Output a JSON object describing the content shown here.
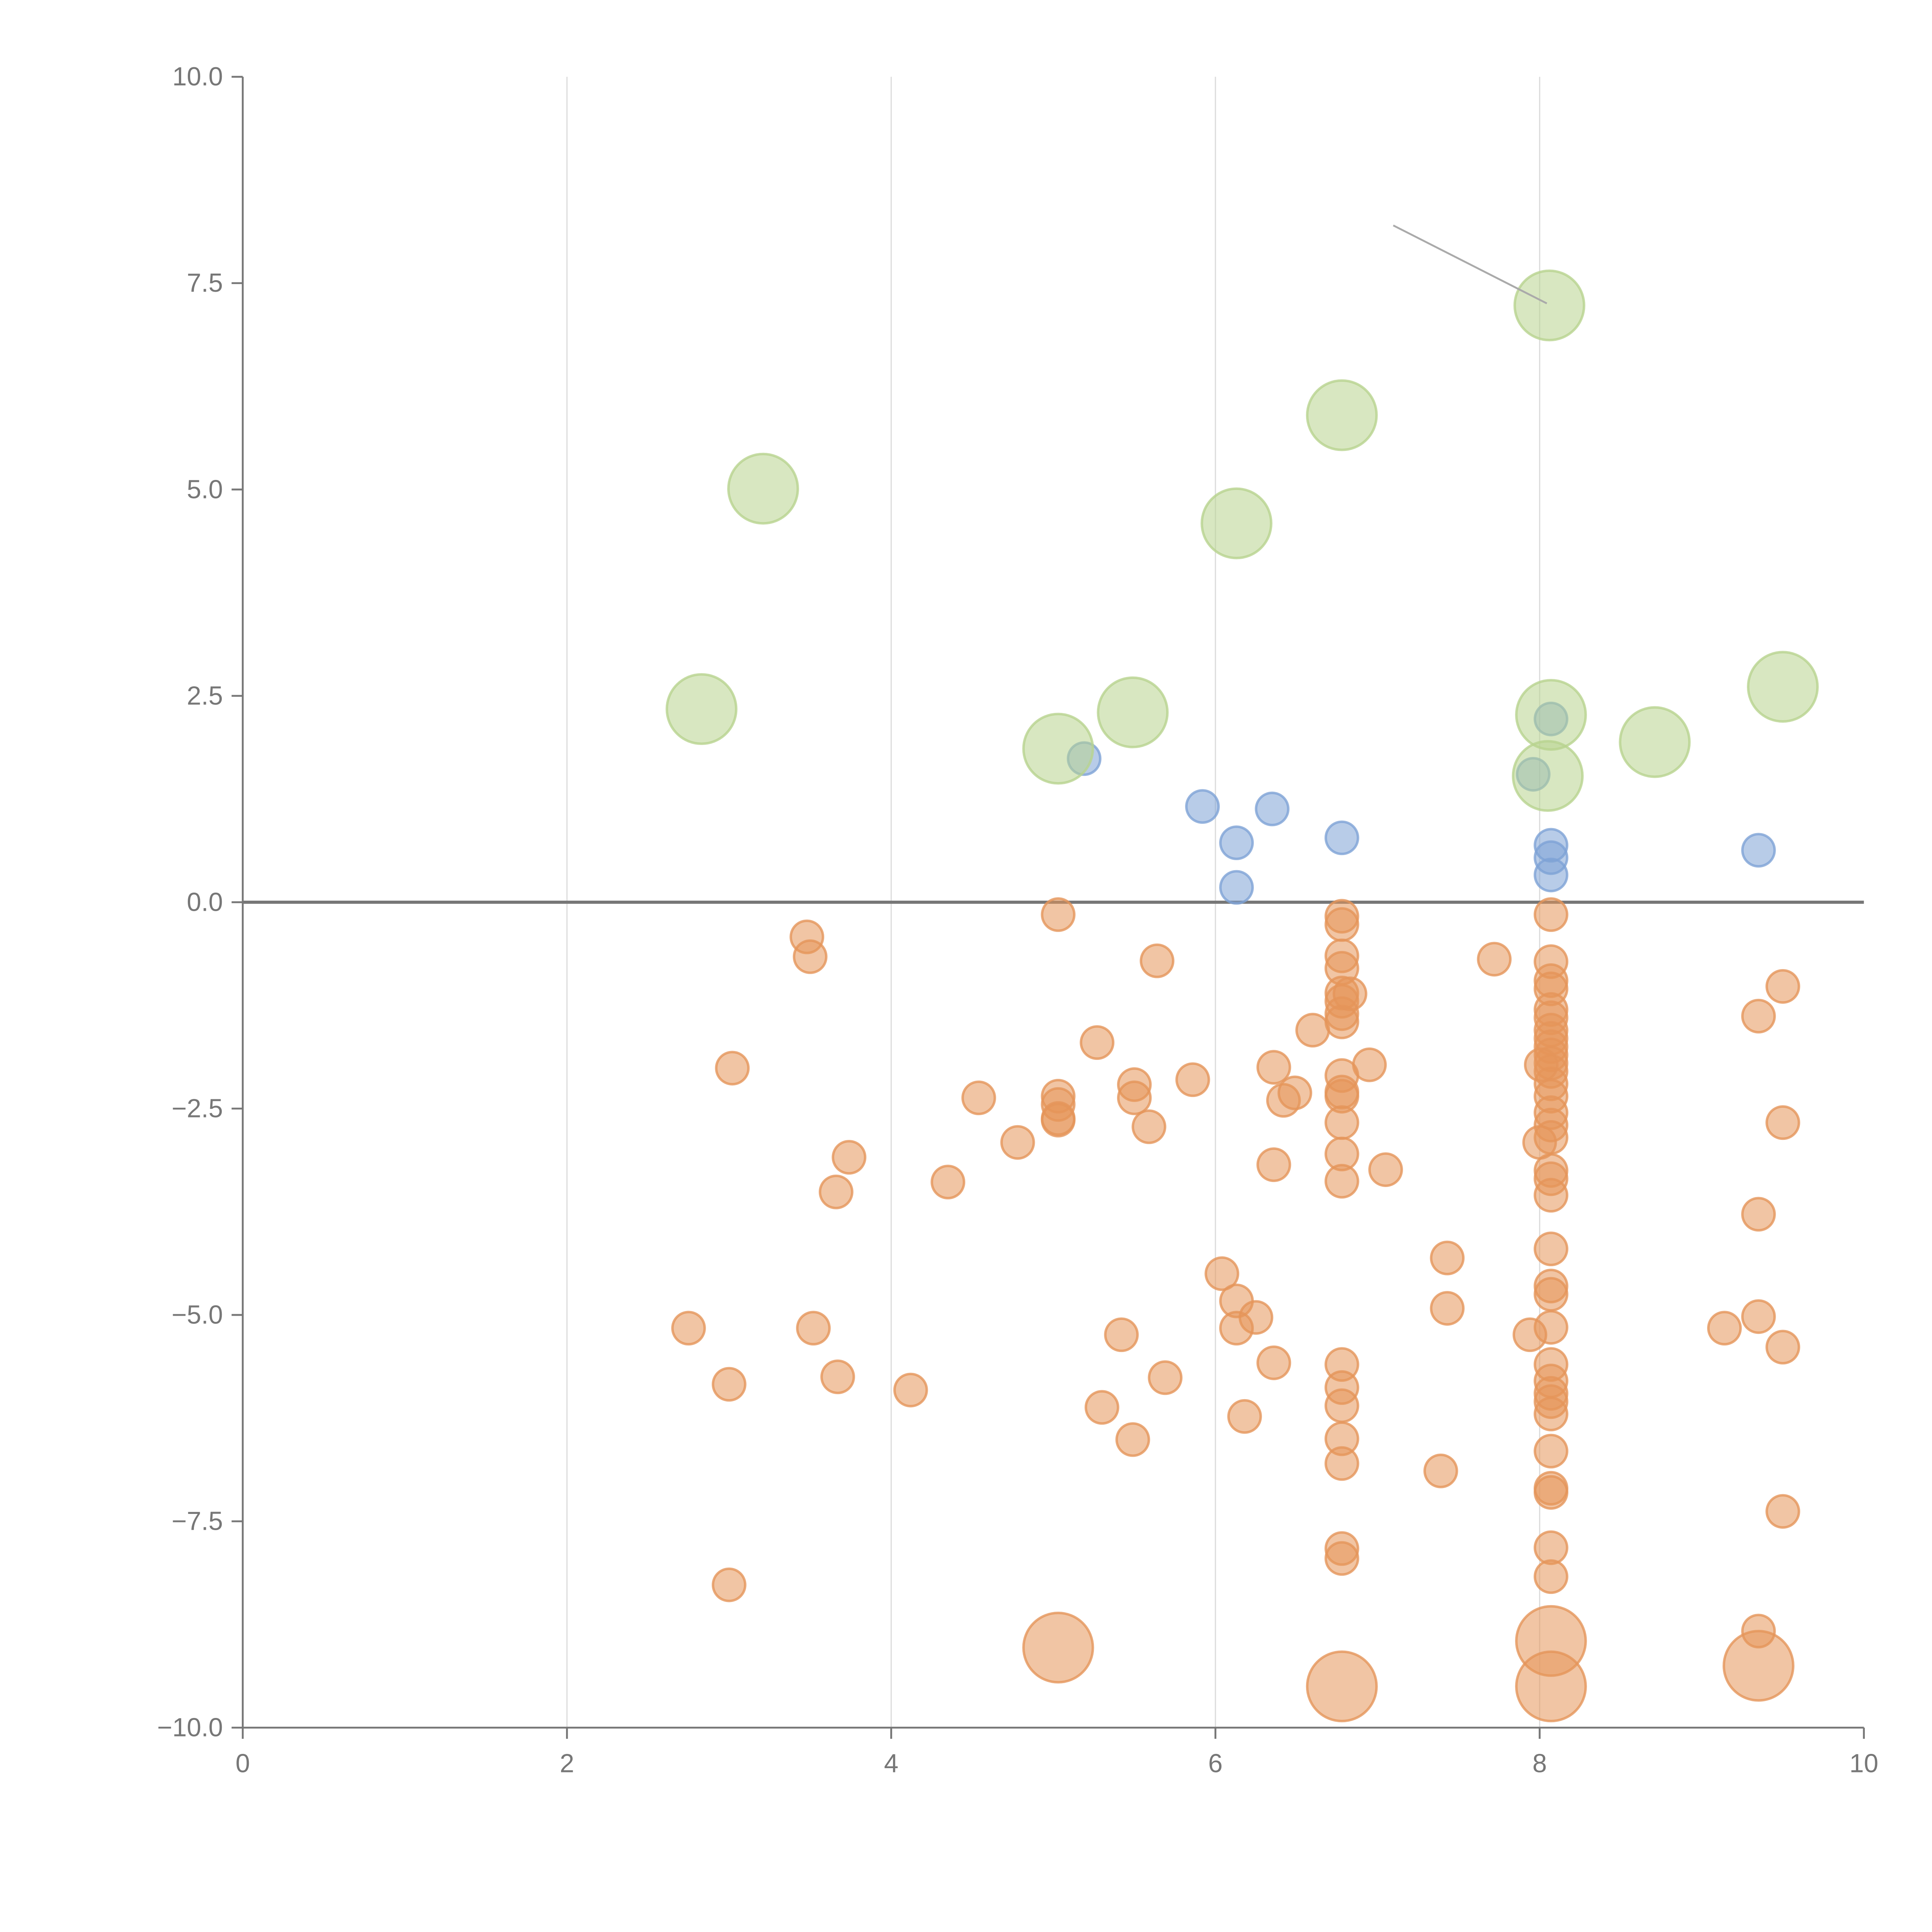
{
  "chart_data": {
    "type": "scatter",
    "title": "",
    "xlabel": "",
    "ylabel": "",
    "xlim": [
      0,
      10
    ],
    "ylim": [
      -10,
      10
    ],
    "xticks": [
      0,
      2,
      4,
      6,
      8,
      10
    ],
    "xtick_labels": [
      "0",
      "2",
      "4",
      "6",
      "8",
      "10"
    ],
    "yticks": [
      10,
      7.5,
      5,
      2.5,
      0,
      -2.5,
      -5,
      -7.5,
      -10
    ],
    "ytick_labels": [
      "10.0",
      "7.5",
      "5.0",
      "2.5",
      "0.0",
      "−2.5",
      "−5.0",
      "−7.5",
      "−10.0"
    ],
    "grid": "vertical",
    "reference_line_y": 0,
    "series": [
      {
        "name": "orange",
        "color": "#e5955a",
        "points": [
          [
            5.03,
            -0.15,
            1
          ],
          [
            5.03,
            -2.35,
            1
          ],
          [
            5.03,
            -2.45,
            1
          ],
          [
            5.03,
            -2.62,
            1
          ],
          [
            5.03,
            -2.64,
            1
          ],
          [
            5.03,
            -9.03,
            2
          ],
          [
            3.48,
            -0.42,
            1
          ],
          [
            3.5,
            -0.66,
            1
          ],
          [
            5.64,
            -0.71,
            1
          ],
          [
            3.02,
            -2.01,
            1
          ],
          [
            5.27,
            -1.7,
            1
          ],
          [
            4.54,
            -2.37,
            1
          ],
          [
            5.5,
            -2.21,
            1
          ],
          [
            5.5,
            -2.37,
            1
          ],
          [
            5.86,
            -2.15,
            1
          ],
          [
            4.78,
            -2.91,
            1
          ],
          [
            5.59,
            -2.72,
            1
          ],
          [
            3.74,
            -3.09,
            1
          ],
          [
            3.66,
            -3.51,
            1
          ],
          [
            4.35,
            -3.39,
            1
          ],
          [
            6.36,
            -2.0,
            1
          ],
          [
            6.42,
            -2.4,
            1
          ],
          [
            6.49,
            -2.31,
            1
          ],
          [
            6.36,
            -3.18,
            1
          ],
          [
            6.6,
            -1.55,
            1
          ],
          [
            6.95,
            -1.97,
            1
          ],
          [
            7.05,
            -3.24,
            1
          ],
          [
            6.78,
            -0.17,
            1
          ],
          [
            6.78,
            -0.27,
            1
          ],
          [
            6.78,
            -0.65,
            1
          ],
          [
            6.78,
            -0.8,
            1
          ],
          [
            6.78,
            -1.1,
            1
          ],
          [
            6.78,
            -1.2,
            1
          ],
          [
            6.78,
            -1.35,
            1
          ],
          [
            6.78,
            -1.45,
            1
          ],
          [
            6.78,
            -2.1,
            1
          ],
          [
            6.78,
            -2.3,
            1
          ],
          [
            6.78,
            -2.35,
            1
          ],
          [
            6.78,
            -2.67,
            1
          ],
          [
            6.78,
            -3.05,
            1
          ],
          [
            6.78,
            -3.38,
            1
          ],
          [
            6.78,
            -5.6,
            1
          ],
          [
            6.78,
            -5.88,
            1
          ],
          [
            6.78,
            -6.1,
            1
          ],
          [
            6.78,
            -6.5,
            1
          ],
          [
            6.78,
            -6.8,
            1
          ],
          [
            6.78,
            -7.83,
            1
          ],
          [
            6.78,
            -7.95,
            1
          ],
          [
            6.78,
            -9.5,
            2
          ],
          [
            6.83,
            -1.11,
            1
          ],
          [
            7.72,
            -0.69,
            1
          ],
          [
            6.04,
            -4.5,
            1
          ],
          [
            6.13,
            -4.83,
            1
          ],
          [
            6.25,
            -5.03,
            1
          ],
          [
            6.13,
            -5.16,
            1
          ],
          [
            6.36,
            -5.58,
            1
          ],
          [
            6.18,
            -6.23,
            1
          ],
          [
            7.43,
            -4.31,
            1
          ],
          [
            7.43,
            -4.92,
            1
          ],
          [
            7.39,
            -6.89,
            1
          ],
          [
            5.42,
            -5.24,
            1
          ],
          [
            5.3,
            -6.12,
            1
          ],
          [
            5.69,
            -5.76,
            1
          ],
          [
            5.49,
            -6.51,
            1
          ],
          [
            4.12,
            -5.91,
            1
          ],
          [
            3.67,
            -5.75,
            1
          ],
          [
            3.52,
            -5.16,
            1
          ],
          [
            2.75,
            -5.16,
            1
          ],
          [
            3.0,
            -5.84,
            1
          ],
          [
            3.0,
            -8.27,
            1
          ],
          [
            8.07,
            -0.15,
            1
          ],
          [
            8.07,
            -0.72,
            1
          ],
          [
            8.07,
            -0.95,
            1
          ],
          [
            8.07,
            -1.05,
            1
          ],
          [
            8.07,
            -1.3,
            1
          ],
          [
            8.07,
            -1.4,
            1
          ],
          [
            8.07,
            -1.55,
            1
          ],
          [
            8.07,
            -1.65,
            1
          ],
          [
            8.07,
            -1.75,
            1
          ],
          [
            8.07,
            -1.85,
            1
          ],
          [
            8.07,
            -1.95,
            1
          ],
          [
            8.07,
            -2.05,
            1
          ],
          [
            8.07,
            -2.2,
            1
          ],
          [
            8.07,
            -2.35,
            1
          ],
          [
            8.07,
            -2.55,
            1
          ],
          [
            8.07,
            -2.7,
            1
          ],
          [
            8.07,
            -2.85,
            1
          ],
          [
            8.07,
            -3.25,
            1
          ],
          [
            8.07,
            -3.35,
            1
          ],
          [
            8.07,
            -3.55,
            1
          ],
          [
            8.07,
            -4.2,
            1
          ],
          [
            8.07,
            -4.65,
            1
          ],
          [
            8.07,
            -4.75,
            1
          ],
          [
            8.07,
            -5.15,
            1
          ],
          [
            8.07,
            -5.6,
            1
          ],
          [
            8.07,
            -5.8,
            1
          ],
          [
            8.07,
            -5.95,
            1
          ],
          [
            8.07,
            -6.05,
            1
          ],
          [
            8.07,
            -6.2,
            1
          ],
          [
            8.07,
            -6.65,
            1
          ],
          [
            8.07,
            -7.1,
            1
          ],
          [
            8.07,
            -7.15,
            1
          ],
          [
            8.07,
            -7.82,
            1
          ],
          [
            8.07,
            -8.17,
            1
          ],
          [
            8.07,
            -8.95,
            2
          ],
          [
            8.07,
            -9.5,
            2
          ],
          [
            8.0,
            -2.91,
            1
          ],
          [
            8.01,
            -1.97,
            1
          ],
          [
            7.94,
            -5.24,
            1
          ],
          [
            9.35,
            -1.38,
            1
          ],
          [
            9.35,
            -3.78,
            1
          ],
          [
            9.35,
            -5.02,
            1
          ],
          [
            9.35,
            -9.25,
            2
          ],
          [
            9.35,
            -8.83,
            1
          ],
          [
            9.5,
            -1.02,
            1
          ],
          [
            9.5,
            -2.67,
            1
          ],
          [
            9.5,
            -5.39,
            1
          ],
          [
            9.5,
            -7.38,
            1
          ],
          [
            9.14,
            -5.16,
            1
          ]
        ]
      },
      {
        "name": "blue",
        "color": "#7ea3d6",
        "points": [
          [
            5.19,
            1.74,
            1
          ],
          [
            8.07,
            2.22,
            1
          ],
          [
            7.96,
            1.55,
            1
          ],
          [
            5.92,
            1.16,
            1
          ],
          [
            6.35,
            1.13,
            1
          ],
          [
            6.13,
            0.72,
            1
          ],
          [
            6.78,
            0.78,
            1
          ],
          [
            6.13,
            0.18,
            1
          ],
          [
            8.07,
            0.69,
            1
          ],
          [
            8.07,
            0.54,
            1
          ],
          [
            8.07,
            0.33,
            1
          ],
          [
            9.35,
            0.63,
            1
          ]
        ]
      },
      {
        "name": "green",
        "color": "#b8d38e",
        "points": [
          [
            3.21,
            5.01,
            2
          ],
          [
            6.78,
            5.9,
            2
          ],
          [
            8.06,
            7.23,
            2
          ],
          [
            6.13,
            4.59,
            2
          ],
          [
            2.83,
            2.34,
            2
          ],
          [
            5.03,
            1.86,
            2
          ],
          [
            5.49,
            2.3,
            2
          ],
          [
            8.07,
            2.27,
            2
          ],
          [
            8.05,
            1.53,
            2
          ],
          [
            8.71,
            1.94,
            2
          ],
          [
            9.5,
            2.61,
            2
          ]
        ]
      }
    ]
  }
}
